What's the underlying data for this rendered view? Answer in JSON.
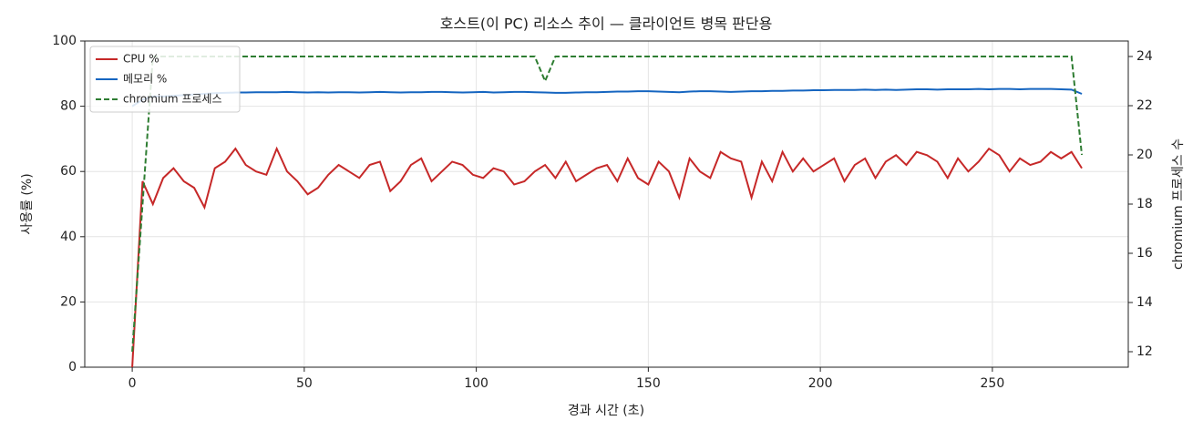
{
  "chart_data": {
    "type": "line",
    "title": "호스트(이 PC) 리소스 추이 — 클라이언트 병목 판단용",
    "x_label": "경과 시간 (초)",
    "y_label": "사용률 (%)",
    "y2_label": "chromium 프로세스 수",
    "x": [
      0,
      3,
      6,
      9,
      12,
      15,
      18,
      21,
      24,
      27,
      30,
      33,
      36,
      39,
      42,
      45,
      48,
      51,
      54,
      57,
      60,
      63,
      66,
      69,
      72,
      75,
      78,
      81,
      84,
      87,
      90,
      93,
      96,
      99,
      102,
      105,
      108,
      111,
      114,
      117,
      120,
      123,
      126,
      129,
      132,
      135,
      138,
      141,
      144,
      147,
      150,
      153,
      156,
      159,
      162,
      165,
      168,
      171,
      174,
      177,
      180,
      183,
      186,
      189,
      192,
      195,
      198,
      201,
      204,
      207,
      210,
      213,
      216,
      219,
      222,
      225,
      228,
      231,
      234,
      237,
      240,
      243,
      246,
      249,
      252,
      255,
      258,
      261,
      264,
      267,
      270,
      273,
      276
    ],
    "series": [
      {
        "name": "CPU %",
        "color": "#c62828",
        "dash": false,
        "values": [
          0,
          57,
          50,
          58,
          61,
          57,
          55,
          49,
          61,
          63,
          67,
          62,
          60,
          59,
          67,
          60,
          57,
          53,
          55,
          59,
          62,
          60,
          58,
          62,
          63,
          54,
          57,
          62,
          64,
          57,
          60,
          63,
          62,
          59,
          58,
          61,
          60,
          56,
          57,
          60,
          62,
          58,
          63,
          57,
          59,
          61,
          62,
          57,
          64,
          58,
          56,
          63,
          60,
          52,
          64,
          60,
          58,
          66,
          64,
          63,
          52,
          63,
          57,
          66,
          60,
          64,
          60,
          62,
          64,
          57,
          62,
          64,
          58,
          63,
          65,
          62,
          66,
          65,
          63,
          58,
          64,
          60,
          63,
          67,
          65,
          60,
          64,
          62,
          63,
          66,
          64,
          66,
          61
        ]
      },
      {
        "name": "메모리 %",
        "color": "#1565c0",
        "dash": false,
        "values": [
          80,
          82,
          83,
          83,
          83.2,
          83.4,
          83.6,
          83.8,
          84,
          84.1,
          84.2,
          84.2,
          84.3,
          84.3,
          84.3,
          84.4,
          84.3,
          84.2,
          84.3,
          84.2,
          84.3,
          84.3,
          84.2,
          84.3,
          84.4,
          84.3,
          84.2,
          84.3,
          84.3,
          84.4,
          84.4,
          84.3,
          84.2,
          84.3,
          84.4,
          84.2,
          84.3,
          84.4,
          84.4,
          84.3,
          84.2,
          84.1,
          84.1,
          84.2,
          84.3,
          84.3,
          84.4,
          84.5,
          84.5,
          84.6,
          84.6,
          84.5,
          84.4,
          84.3,
          84.5,
          84.6,
          84.6,
          84.5,
          84.4,
          84.5,
          84.6,
          84.6,
          84.7,
          84.7,
          84.8,
          84.8,
          84.9,
          84.9,
          85,
          85,
          85,
          85.1,
          85,
          85.1,
          85,
          85.1,
          85.2,
          85.2,
          85.1,
          85.2,
          85.2,
          85.2,
          85.3,
          85.2,
          85.3,
          85.3,
          85.2,
          85.3,
          85.3,
          85.3,
          85.2,
          85.1,
          83.8
        ]
      },
      {
        "name": "chromium 프로세스",
        "color": "#2e7d32",
        "dash": true,
        "axis": "y2",
        "values": [
          12,
          18,
          24,
          24,
          24,
          24,
          24,
          24,
          24,
          24,
          24,
          24,
          24,
          24,
          24,
          24,
          24,
          24,
          24,
          24,
          24,
          24,
          24,
          24,
          24,
          24,
          24,
          24,
          24,
          24,
          24,
          24,
          24,
          24,
          24,
          24,
          24,
          24,
          24,
          24,
          23,
          24,
          24,
          24,
          24,
          24,
          24,
          24,
          24,
          24,
          24,
          24,
          24,
          24,
          24,
          24,
          24,
          24,
          24,
          24,
          24,
          24,
          24,
          24,
          24,
          24,
          24,
          24,
          24,
          24,
          24,
          24,
          24,
          24,
          24,
          24,
          24,
          24,
          24,
          24,
          24,
          24,
          24,
          24,
          24,
          24,
          24,
          24,
          24,
          24,
          24,
          24,
          20
        ]
      }
    ],
    "xlim": [
      -13.8,
      289.5
    ],
    "xticks": [
      0,
      50,
      100,
      150,
      200,
      250
    ],
    "ylim": [
      0,
      100
    ],
    "yticks": [
      0,
      20,
      40,
      60,
      80,
      100
    ],
    "y2lim": [
      11.37,
      24.63
    ],
    "y2ticks": [
      12,
      14,
      16,
      18,
      20,
      22,
      24
    ],
    "grid": true,
    "legend": "upper left"
  }
}
